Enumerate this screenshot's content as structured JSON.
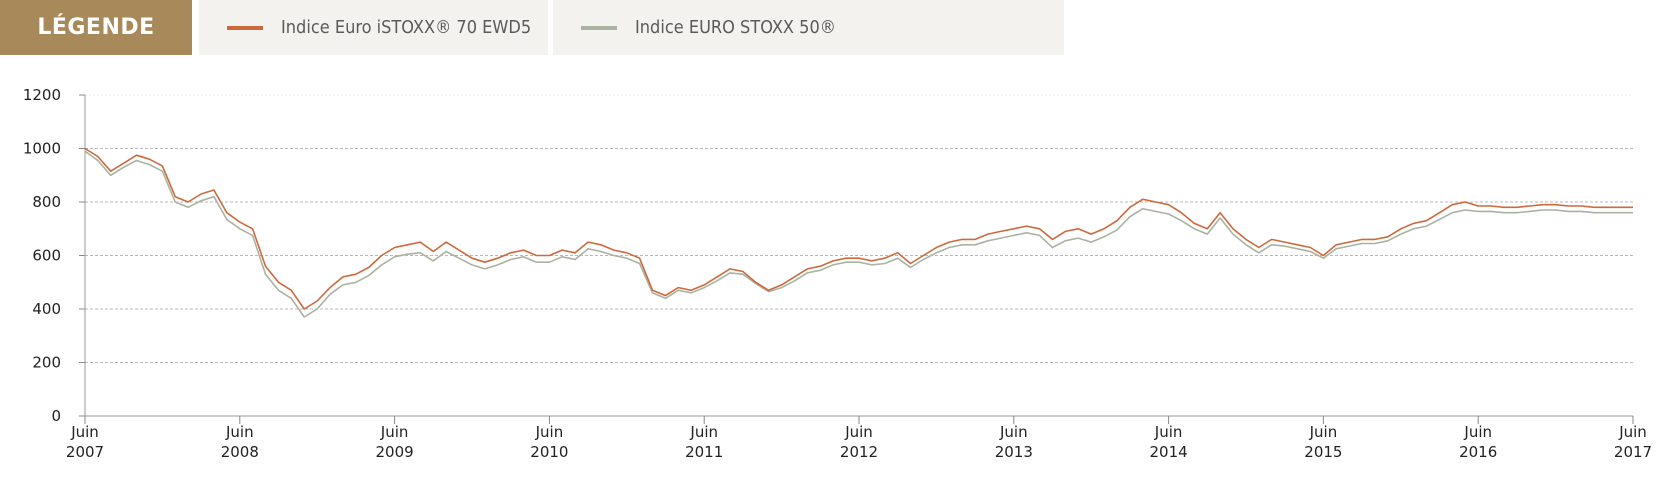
{
  "legend": {
    "title": "LÉGENDE",
    "items": [
      {
        "label": "Indice Euro iSTOXX® 70 EWD5",
        "color": "#cc6a3e"
      },
      {
        "label": "Indice EURO STOXX 50®",
        "color": "#a9b3a0"
      }
    ]
  },
  "chart_data": {
    "type": "line",
    "title": "",
    "xlabel": "",
    "ylabel": "",
    "ylim": [
      0,
      1200
    ],
    "yticks": [
      0,
      200,
      400,
      600,
      800,
      1000,
      1200
    ],
    "xlim": [
      2007.417,
      2017.417
    ],
    "xticks": [
      {
        "month": "Juin",
        "year": "2007"
      },
      {
        "month": "Juin",
        "year": "2008"
      },
      {
        "month": "Juin",
        "year": "2009"
      },
      {
        "month": "Juin",
        "year": "2010"
      },
      {
        "month": "Juin",
        "year": "2011"
      },
      {
        "month": "Juin",
        "year": "2012"
      },
      {
        "month": "Juin",
        "year": "2013"
      },
      {
        "month": "Juin",
        "year": "2014"
      },
      {
        "month": "Juin",
        "year": "2015"
      },
      {
        "month": "Juin",
        "year": "2016"
      },
      {
        "month": "Juin",
        "year": "2017"
      }
    ],
    "grid": true,
    "series": [
      {
        "name": "Indice Euro iSTOXX® 70 EWD5",
        "color": "#cc6a3e",
        "x": [
          2007.417,
          2007.5,
          2007.583,
          2007.667,
          2007.75,
          2007.833,
          2007.917,
          2008.0,
          2008.083,
          2008.167,
          2008.25,
          2008.333,
          2008.417,
          2008.5,
          2008.583,
          2008.667,
          2008.75,
          2008.833,
          2008.917,
          2009.0,
          2009.083,
          2009.167,
          2009.25,
          2009.333,
          2009.417,
          2009.5,
          2009.583,
          2009.667,
          2009.75,
          2009.833,
          2009.917,
          2010.0,
          2010.083,
          2010.167,
          2010.25,
          2010.333,
          2010.417,
          2010.5,
          2010.583,
          2010.667,
          2010.75,
          2010.833,
          2010.917,
          2011.0,
          2011.083,
          2011.167,
          2011.25,
          2011.333,
          2011.417,
          2011.5,
          2011.583,
          2011.667,
          2011.75,
          2011.833,
          2011.917,
          2012.0,
          2012.083,
          2012.167,
          2012.25,
          2012.333,
          2012.417,
          2012.5,
          2012.583,
          2012.667,
          2012.75,
          2012.833,
          2012.917,
          2013.0,
          2013.083,
          2013.167,
          2013.25,
          2013.333,
          2013.417,
          2013.5,
          2013.583,
          2013.667,
          2013.75,
          2013.833,
          2013.917,
          2014.0,
          2014.083,
          2014.167,
          2014.25,
          2014.333,
          2014.417,
          2014.5,
          2014.583,
          2014.667,
          2014.75,
          2014.833,
          2014.917,
          2015.0,
          2015.083,
          2015.167,
          2015.25,
          2015.333,
          2015.417,
          2015.5,
          2015.583,
          2015.667,
          2015.75,
          2015.833,
          2015.917,
          2016.0,
          2016.083,
          2016.167,
          2016.25,
          2016.333,
          2016.417,
          2016.5,
          2016.583,
          2016.667,
          2016.75,
          2016.833,
          2016.917,
          2017.0,
          2017.083,
          2017.167,
          2017.25,
          2017.333,
          2017.417
        ],
        "values": [
          1000,
          970,
          915,
          945,
          975,
          960,
          935,
          820,
          800,
          830,
          845,
          760,
          725,
          700,
          560,
          500,
          470,
          400,
          430,
          480,
          520,
          530,
          555,
          600,
          630,
          640,
          650,
          615,
          650,
          620,
          590,
          575,
          590,
          610,
          620,
          600,
          600,
          620,
          610,
          650,
          640,
          620,
          610,
          590,
          470,
          450,
          480,
          470,
          490,
          520,
          550,
          540,
          500,
          470,
          490,
          520,
          550,
          560,
          580,
          590,
          590,
          580,
          590,
          610,
          570,
          600,
          630,
          650,
          660,
          660,
          680,
          690,
          700,
          710,
          700,
          660,
          690,
          700,
          680,
          700,
          730,
          780,
          810,
          800,
          790,
          760,
          720,
          700,
          760,
          700,
          660,
          630,
          660,
          650,
          640,
          630,
          600,
          640,
          650,
          660,
          660,
          670,
          700,
          720,
          730,
          760,
          790,
          800,
          785,
          785,
          780,
          780,
          785,
          790,
          790,
          785,
          785,
          780,
          780,
          780,
          780
        ]
      },
      {
        "name": "Indice EURO STOXX 50®",
        "color": "#a9b3a0",
        "x": [
          2007.417,
          2007.5,
          2007.583,
          2007.667,
          2007.75,
          2007.833,
          2007.917,
          2008.0,
          2008.083,
          2008.167,
          2008.25,
          2008.333,
          2008.417,
          2008.5,
          2008.583,
          2008.667,
          2008.75,
          2008.833,
          2008.917,
          2009.0,
          2009.083,
          2009.167,
          2009.25,
          2009.333,
          2009.417,
          2009.5,
          2009.583,
          2009.667,
          2009.75,
          2009.833,
          2009.917,
          2010.0,
          2010.083,
          2010.167,
          2010.25,
          2010.333,
          2010.417,
          2010.5,
          2010.583,
          2010.667,
          2010.75,
          2010.833,
          2010.917,
          2011.0,
          2011.083,
          2011.167,
          2011.25,
          2011.333,
          2011.417,
          2011.5,
          2011.583,
          2011.667,
          2011.75,
          2011.833,
          2011.917,
          2012.0,
          2012.083,
          2012.167,
          2012.25,
          2012.333,
          2012.417,
          2012.5,
          2012.583,
          2012.667,
          2012.75,
          2012.833,
          2012.917,
          2013.0,
          2013.083,
          2013.167,
          2013.25,
          2013.333,
          2013.417,
          2013.5,
          2013.583,
          2013.667,
          2013.75,
          2013.833,
          2013.917,
          2014.0,
          2014.083,
          2014.167,
          2014.25,
          2014.333,
          2014.417,
          2014.5,
          2014.583,
          2014.667,
          2014.75,
          2014.833,
          2014.917,
          2015.0,
          2015.083,
          2015.167,
          2015.25,
          2015.333,
          2015.417,
          2015.5,
          2015.583,
          2015.667,
          2015.75,
          2015.833,
          2015.917,
          2016.0,
          2016.083,
          2016.167,
          2016.25,
          2016.333,
          2016.417,
          2016.5,
          2016.583,
          2016.667,
          2016.75,
          2016.833,
          2016.917,
          2017.0,
          2017.083,
          2017.167,
          2017.25,
          2017.333,
          2017.417
        ],
        "values": [
          990,
          955,
          900,
          930,
          955,
          940,
          915,
          800,
          780,
          805,
          820,
          735,
          700,
          675,
          530,
          470,
          440,
          370,
          400,
          455,
          490,
          500,
          525,
          565,
          595,
          605,
          610,
          580,
          615,
          590,
          565,
          550,
          565,
          585,
          595,
          575,
          575,
          595,
          585,
          625,
          615,
          600,
          590,
          570,
          460,
          440,
          470,
          460,
          480,
          505,
          535,
          530,
          495,
          465,
          480,
          505,
          535,
          545,
          565,
          575,
          575,
          565,
          570,
          590,
          555,
          585,
          610,
          630,
          640,
          640,
          655,
          665,
          675,
          685,
          675,
          630,
          655,
          665,
          650,
          670,
          695,
          745,
          775,
          765,
          755,
          730,
          700,
          680,
          740,
          680,
          640,
          610,
          640,
          635,
          625,
          615,
          590,
          625,
          635,
          645,
          645,
          655,
          680,
          700,
          710,
          735,
          760,
          770,
          765,
          765,
          760,
          760,
          765,
          770,
          770,
          765,
          765,
          760,
          760,
          760,
          760
        ]
      }
    ]
  }
}
